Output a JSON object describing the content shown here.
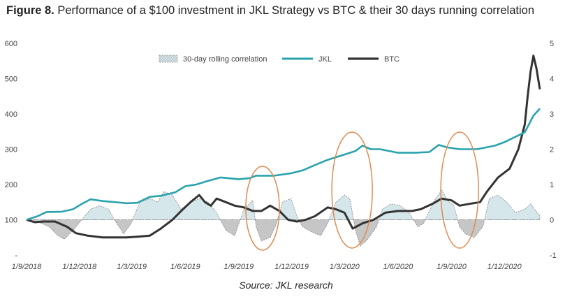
{
  "title": {
    "lead": "Figure 8.",
    "text": "Performance of a $100 investment in JKL Strategy vs BTC & their 30 days running correlation"
  },
  "source": "Source: JKL research",
  "colors": {
    "jkl": "#2aa3ae",
    "btc": "#333333",
    "corr_pos_fill": "#d6e7ec",
    "corr_neg_fill": "#c6c6c6",
    "corr_edge": "#8c8c8c",
    "annotation": "#e08a4f"
  },
  "chart_data": {
    "type": "line",
    "legend_position": "top-center",
    "grid": false,
    "x_ticks": [
      "1/9/2018",
      "1/12/2018",
      "1/3/2019",
      "1/6/2019",
      "1/9/2019",
      "1/12/2019",
      "1/3/2020",
      "1/6/2020",
      "1/9/2020",
      "1/12/2020"
    ],
    "x_range": [
      "2018-09-01",
      "2021-01-31"
    ],
    "y_left": {
      "range": [
        0,
        600
      ],
      "ticks": [
        "600",
        "500",
        "400",
        "300",
        "200",
        "100",
        "-"
      ]
    },
    "y_right": {
      "range": [
        -1,
        5
      ],
      "ticks": [
        "5",
        "4",
        "3",
        "2",
        "1",
        "0",
        "-1"
      ]
    },
    "series": [
      {
        "name": "30-day rolling correlation",
        "kind": "area",
        "axis": "right",
        "points": [
          [
            "2018-09-01",
            0.0
          ],
          [
            "2018-09-20",
            -0.05
          ],
          [
            "2018-10-10",
            -0.2
          ],
          [
            "2018-10-25",
            -0.45
          ],
          [
            "2018-11-05",
            -0.55
          ],
          [
            "2018-11-20",
            -0.3
          ],
          [
            "2018-12-05",
            0.0
          ],
          [
            "2018-12-20",
            0.3
          ],
          [
            "2019-01-05",
            0.4
          ],
          [
            "2019-01-20",
            0.3
          ],
          [
            "2019-02-01",
            -0.05
          ],
          [
            "2019-02-15",
            -0.4
          ],
          [
            "2019-02-28",
            -0.1
          ],
          [
            "2019-03-15",
            0.5
          ],
          [
            "2019-04-01",
            0.6
          ],
          [
            "2019-04-15",
            0.5
          ],
          [
            "2019-04-25",
            0.8
          ],
          [
            "2019-05-10",
            0.7
          ],
          [
            "2019-05-25",
            0.3
          ],
          [
            "2019-06-10",
            0.5
          ],
          [
            "2019-06-25",
            0.6
          ],
          [
            "2019-07-10",
            0.5
          ],
          [
            "2019-07-25",
            0.2
          ],
          [
            "2019-08-10",
            -0.3
          ],
          [
            "2019-08-25",
            -0.45
          ],
          [
            "2019-09-10",
            0.3
          ],
          [
            "2019-09-25",
            0.55
          ],
          [
            "2019-10-01",
            -0.2
          ],
          [
            "2019-10-10",
            -0.6
          ],
          [
            "2019-10-25",
            -0.5
          ],
          [
            "2019-11-05",
            -0.1
          ],
          [
            "2019-11-15",
            0.5
          ],
          [
            "2019-11-30",
            0.6
          ],
          [
            "2019-12-10",
            0.1
          ],
          [
            "2019-12-20",
            -0.2
          ],
          [
            "2020-01-05",
            -0.35
          ],
          [
            "2020-01-20",
            -0.45
          ],
          [
            "2020-02-01",
            -0.1
          ],
          [
            "2020-02-15",
            0.5
          ],
          [
            "2020-03-01",
            0.7
          ],
          [
            "2020-03-10",
            0.6
          ],
          [
            "2020-03-20",
            -0.3
          ],
          [
            "2020-03-28",
            -0.75
          ],
          [
            "2020-04-10",
            -0.55
          ],
          [
            "2020-04-25",
            -0.2
          ],
          [
            "2020-05-05",
            0.3
          ],
          [
            "2020-05-20",
            0.45
          ],
          [
            "2020-06-05",
            0.4
          ],
          [
            "2020-06-20",
            0.2
          ],
          [
            "2020-07-05",
            -0.2
          ],
          [
            "2020-07-15",
            -0.1
          ],
          [
            "2020-08-01",
            0.5
          ],
          [
            "2020-08-15",
            0.85
          ],
          [
            "2020-08-25",
            0.55
          ],
          [
            "2020-09-05",
            0.4
          ],
          [
            "2020-09-15",
            -0.2
          ],
          [
            "2020-09-25",
            -0.4
          ],
          [
            "2020-10-10",
            -0.5
          ],
          [
            "2020-10-25",
            -0.2
          ],
          [
            "2020-11-05",
            0.6
          ],
          [
            "2020-11-20",
            0.7
          ],
          [
            "2020-12-05",
            0.5
          ],
          [
            "2020-12-20",
            0.2
          ],
          [
            "2021-01-05",
            0.3
          ],
          [
            "2021-01-15",
            0.45
          ],
          [
            "2021-01-31",
            0.1
          ]
        ]
      },
      {
        "name": "JKL",
        "kind": "line",
        "axis": "left",
        "points": [
          [
            "2018-09-01",
            100
          ],
          [
            "2018-09-20",
            110
          ],
          [
            "2018-10-05",
            122
          ],
          [
            "2018-11-01",
            123
          ],
          [
            "2018-11-20",
            130
          ],
          [
            "2018-12-05",
            145
          ],
          [
            "2018-12-20",
            158
          ],
          [
            "2019-01-10",
            153
          ],
          [
            "2019-02-01",
            150
          ],
          [
            "2019-02-20",
            147
          ],
          [
            "2019-03-10",
            148
          ],
          [
            "2019-04-01",
            165
          ],
          [
            "2019-04-20",
            168
          ],
          [
            "2019-05-15",
            178
          ],
          [
            "2019-06-01",
            195
          ],
          [
            "2019-06-20",
            200
          ],
          [
            "2019-07-10",
            210
          ],
          [
            "2019-08-01",
            220
          ],
          [
            "2019-09-01",
            215
          ],
          [
            "2019-09-20",
            218
          ],
          [
            "2019-10-01",
            225
          ],
          [
            "2019-11-01",
            225
          ],
          [
            "2019-12-01",
            232
          ],
          [
            "2019-12-20",
            240
          ],
          [
            "2020-01-10",
            255
          ],
          [
            "2020-02-01",
            270
          ],
          [
            "2020-03-01",
            285
          ],
          [
            "2020-03-20",
            295
          ],
          [
            "2020-04-01",
            310
          ],
          [
            "2020-04-15",
            300
          ],
          [
            "2020-05-01",
            300
          ],
          [
            "2020-06-01",
            290
          ],
          [
            "2020-07-01",
            290
          ],
          [
            "2020-07-25",
            292
          ],
          [
            "2020-08-10",
            312
          ],
          [
            "2020-08-25",
            305
          ],
          [
            "2020-09-15",
            300
          ],
          [
            "2020-10-15",
            300
          ],
          [
            "2020-11-15",
            310
          ],
          [
            "2020-12-01",
            320
          ],
          [
            "2020-12-20",
            335
          ],
          [
            "2021-01-05",
            348
          ],
          [
            "2021-01-20",
            395
          ],
          [
            "2021-01-31",
            415
          ]
        ]
      },
      {
        "name": "BTC",
        "kind": "line",
        "axis": "left",
        "points": [
          [
            "2018-09-01",
            100
          ],
          [
            "2018-09-15",
            93
          ],
          [
            "2018-10-01",
            95
          ],
          [
            "2018-10-20",
            95
          ],
          [
            "2018-11-10",
            80
          ],
          [
            "2018-11-25",
            62
          ],
          [
            "2018-12-15",
            55
          ],
          [
            "2019-01-10",
            50
          ],
          [
            "2019-02-01",
            50
          ],
          [
            "2019-02-20",
            50
          ],
          [
            "2019-03-10",
            52
          ],
          [
            "2019-04-01",
            55
          ],
          [
            "2019-04-20",
            75
          ],
          [
            "2019-05-10",
            100
          ],
          [
            "2019-05-25",
            125
          ],
          [
            "2019-06-10",
            150
          ],
          [
            "2019-06-25",
            170
          ],
          [
            "2019-07-05",
            150
          ],
          [
            "2019-07-15",
            140
          ],
          [
            "2019-07-25",
            160
          ],
          [
            "2019-08-10",
            150
          ],
          [
            "2019-08-25",
            140
          ],
          [
            "2019-09-10",
            135
          ],
          [
            "2019-09-25",
            125
          ],
          [
            "2019-10-10",
            125
          ],
          [
            "2019-10-25",
            140
          ],
          [
            "2019-11-10",
            125
          ],
          [
            "2019-11-25",
            100
          ],
          [
            "2019-12-10",
            95
          ],
          [
            "2019-12-25",
            100
          ],
          [
            "2020-01-10",
            110
          ],
          [
            "2020-02-01",
            135
          ],
          [
            "2020-02-15",
            130
          ],
          [
            "2020-03-01",
            120
          ],
          [
            "2020-03-15",
            75
          ],
          [
            "2020-04-01",
            90
          ],
          [
            "2020-04-20",
            100
          ],
          [
            "2020-05-10",
            120
          ],
          [
            "2020-06-01",
            125
          ],
          [
            "2020-06-25",
            125
          ],
          [
            "2020-07-10",
            130
          ],
          [
            "2020-07-30",
            145
          ],
          [
            "2020-08-15",
            160
          ],
          [
            "2020-09-01",
            155
          ],
          [
            "2020-09-15",
            140
          ],
          [
            "2020-10-01",
            145
          ],
          [
            "2020-10-20",
            150
          ],
          [
            "2020-11-01",
            180
          ],
          [
            "2020-11-20",
            220
          ],
          [
            "2020-12-10",
            245
          ],
          [
            "2020-12-25",
            300
          ],
          [
            "2021-01-05",
            370
          ],
          [
            "2021-01-10",
            450
          ],
          [
            "2021-01-15",
            520
          ],
          [
            "2021-01-20",
            565
          ],
          [
            "2021-01-25",
            530
          ],
          [
            "2021-01-31",
            470
          ]
        ]
      }
    ]
  }
}
